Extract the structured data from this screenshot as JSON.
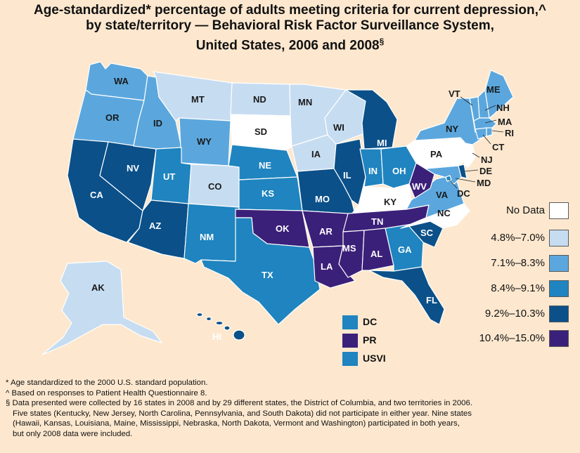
{
  "title": {
    "line1": "Age-standardized* percentage of adults meeting criteria for current depression,^",
    "line2": "by state/territory — Behavioral Risk Factor Surveillance System,",
    "line3": "United States, 2006 and 2008",
    "line3_mark": "§"
  },
  "colors": {
    "no_data": "#ffffff",
    "c1": "#c6dcf1",
    "c2": "#5ba7dd",
    "c3": "#1f84bf",
    "c4": "#0b5089",
    "c5": "#3b2079",
    "background": "#fde8cf"
  },
  "legend": [
    {
      "label": "No Data",
      "class": "no_data"
    },
    {
      "label": "4.8%–7.0%",
      "class": "c1"
    },
    {
      "label": "7.1%–8.3%",
      "class": "c2"
    },
    {
      "label": "8.4%–9.1%",
      "class": "c3"
    },
    {
      "label": "9.2%–10.3%",
      "class": "c4"
    },
    {
      "label": "10.4%–15.0%",
      "class": "c5"
    }
  ],
  "states": [
    {
      "abbr": "WA",
      "class": "c2"
    },
    {
      "abbr": "OR",
      "class": "c2"
    },
    {
      "abbr": "CA",
      "class": "c4"
    },
    {
      "abbr": "NV",
      "class": "c4"
    },
    {
      "abbr": "ID",
      "class": "c2"
    },
    {
      "abbr": "MT",
      "class": "c1"
    },
    {
      "abbr": "WY",
      "class": "c2"
    },
    {
      "abbr": "UT",
      "class": "c3"
    },
    {
      "abbr": "AZ",
      "class": "c4"
    },
    {
      "abbr": "CO",
      "class": "c1"
    },
    {
      "abbr": "NM",
      "class": "c3"
    },
    {
      "abbr": "ND",
      "class": "c1"
    },
    {
      "abbr": "SD",
      "class": "no_data"
    },
    {
      "abbr": "NE",
      "class": "c3"
    },
    {
      "abbr": "KS",
      "class": "c3"
    },
    {
      "abbr": "OK",
      "class": "c5"
    },
    {
      "abbr": "TX",
      "class": "c3"
    },
    {
      "abbr": "MN",
      "class": "c1"
    },
    {
      "abbr": "IA",
      "class": "c1"
    },
    {
      "abbr": "MO",
      "class": "c4"
    },
    {
      "abbr": "AR",
      "class": "c5"
    },
    {
      "abbr": "LA",
      "class": "c5"
    },
    {
      "abbr": "WI",
      "class": "c1"
    },
    {
      "abbr": "IL",
      "class": "c4"
    },
    {
      "abbr": "MI",
      "class": "c4"
    },
    {
      "abbr": "IN",
      "class": "c3"
    },
    {
      "abbr": "OH",
      "class": "c3"
    },
    {
      "abbr": "KY",
      "class": "no_data"
    },
    {
      "abbr": "TN",
      "class": "c5"
    },
    {
      "abbr": "MS",
      "class": "c5"
    },
    {
      "abbr": "AL",
      "class": "c5"
    },
    {
      "abbr": "GA",
      "class": "c3"
    },
    {
      "abbr": "FL",
      "class": "c4"
    },
    {
      "abbr": "SC",
      "class": "c4"
    },
    {
      "abbr": "NC",
      "class": "no_data"
    },
    {
      "abbr": "VA",
      "class": "c2"
    },
    {
      "abbr": "WV",
      "class": "c5"
    },
    {
      "abbr": "PA",
      "class": "no_data"
    },
    {
      "abbr": "NY",
      "class": "c2"
    },
    {
      "abbr": "VT",
      "class": "c2"
    },
    {
      "abbr": "NH",
      "class": "c2"
    },
    {
      "abbr": "ME",
      "class": "c2"
    },
    {
      "abbr": "MA",
      "class": "c2"
    },
    {
      "abbr": "RI",
      "class": "c2"
    },
    {
      "abbr": "CT",
      "class": "c2"
    },
    {
      "abbr": "NJ",
      "class": "no_data"
    },
    {
      "abbr": "DE",
      "class": "c4"
    },
    {
      "abbr": "MD",
      "class": "c2"
    },
    {
      "abbr": "DC",
      "class": "c3"
    },
    {
      "abbr": "AK",
      "class": "c1"
    },
    {
      "abbr": "HI",
      "class": "c4"
    }
  ],
  "territories": [
    {
      "abbr": "DC",
      "class": "c3"
    },
    {
      "abbr": "PR",
      "class": "c5"
    },
    {
      "abbr": "USVI",
      "class": "c3"
    }
  ],
  "footnotes": [
    "* Age standardized to the 2000 U.S. standard population.",
    "^ Based on responses to Patient Health Questionnaire 8.",
    "§ Data presented were collected by 16 states in 2008 and by 29 different states, the District of Columbia, and two territories in 2006.",
    "Five states (Kentucky, New Jersey, North Carolina, Pennsylvania, and South Dakota) did not participate in either year. Nine states",
    "(Hawaii, Kansas, Louisiana, Maine, Mississippi, Nebraska, North Dakota, Vermont and Washington) participated in both years,",
    "but only 2008 data were included."
  ]
}
